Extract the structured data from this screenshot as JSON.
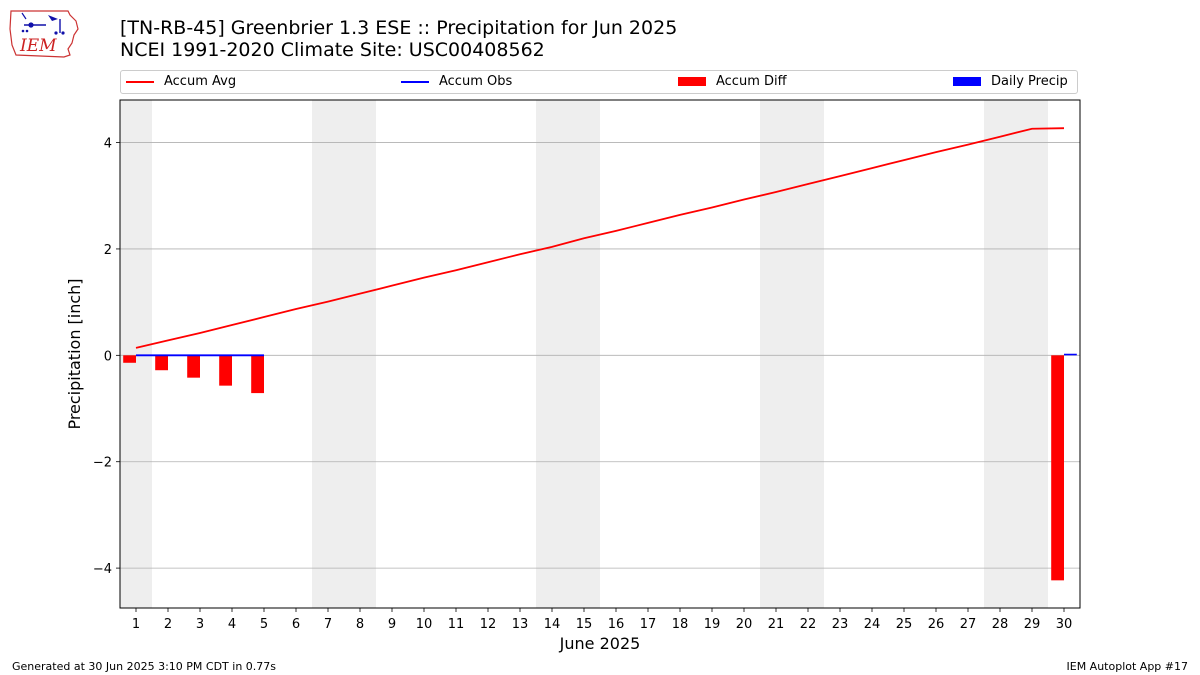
{
  "header": {
    "logo_text": "IEM",
    "title_line1": "[TN-RB-45] Greenbrier 1.3 ESE :: Precipitation for Jun 2025",
    "title_line2": "NCEI 1991-2020 Climate Site: USC00408562"
  },
  "footer": {
    "left": "Generated at 30 Jun 2025 3:10 PM CDT in 0.77s",
    "right": "IEM Autoplot App #17"
  },
  "colors": {
    "accum_avg": "#ff0000",
    "accum_obs": "#0000ff",
    "accum_diff": "#ff0000",
    "daily_precip": "#0000ff",
    "weekend_shade": "#eeeeee",
    "grid": "#b0b0b0"
  },
  "chart_data": {
    "type": "line",
    "title": "[TN-RB-45] Greenbrier 1.3 ESE :: Precipitation for Jun 2025",
    "subtitle": "NCEI 1991-2020 Climate Site: USC00408562",
    "xlabel": "June 2025",
    "ylabel": "Precipitation [inch]",
    "xlim": [
      0.5,
      30.5
    ],
    "ylim": [
      -4.75,
      4.8
    ],
    "x": [
      1,
      2,
      3,
      4,
      5,
      6,
      7,
      8,
      9,
      10,
      11,
      12,
      13,
      14,
      15,
      16,
      17,
      18,
      19,
      20,
      21,
      22,
      23,
      24,
      25,
      26,
      27,
      28,
      29,
      30
    ],
    "x_tick_labels": [
      "1",
      "2",
      "3",
      "4",
      "5",
      "6",
      "7",
      "8",
      "9",
      "10",
      "11",
      "12",
      "13",
      "14",
      "15",
      "16",
      "17",
      "18",
      "19",
      "20",
      "21",
      "22",
      "23",
      "24",
      "25",
      "26",
      "27",
      "28",
      "29",
      "30"
    ],
    "y_ticks": [
      4,
      2,
      0,
      -2,
      -4
    ],
    "y_tick_labels": [
      "4",
      "2",
      "0",
      "−2",
      "−4"
    ],
    "grid": "horizontal",
    "legend_position": "top",
    "weekend_shading": [
      [
        0.5,
        1.5
      ],
      [
        6.5,
        8.5
      ],
      [
        13.5,
        15.5
      ],
      [
        20.5,
        22.5
      ],
      [
        27.5,
        29.5
      ]
    ],
    "series": [
      {
        "name": "Accum Avg",
        "type": "line",
        "x": [
          1,
          2,
          3,
          4,
          5,
          6,
          7,
          8,
          9,
          10,
          11,
          12,
          13,
          14,
          15,
          16,
          17,
          18,
          19,
          20,
          21,
          22,
          23,
          24,
          25,
          26,
          27,
          28,
          29,
          30
        ],
        "values": [
          0.14,
          0.28,
          0.42,
          0.57,
          0.72,
          0.87,
          1.01,
          1.16,
          1.31,
          1.46,
          1.6,
          1.75,
          1.9,
          2.04,
          2.2,
          2.34,
          2.49,
          2.64,
          2.78,
          2.93,
          3.07,
          3.22,
          3.37,
          3.52,
          3.67,
          3.82,
          3.96,
          4.11,
          4.26,
          4.27
        ]
      },
      {
        "name": "Accum Obs",
        "type": "line",
        "x": [
          1,
          2,
          3,
          4,
          5
        ],
        "values": [
          0.0,
          0.0,
          0.0,
          0.0,
          0.0
        ]
      },
      {
        "name": "Accum Diff",
        "type": "bar",
        "x": [
          1,
          2,
          3,
          4,
          5,
          30
        ],
        "values": [
          -0.14,
          -0.28,
          -0.42,
          -0.57,
          -0.71,
          -4.23
        ]
      },
      {
        "name": "Daily Precip",
        "type": "bar",
        "x": [
          30
        ],
        "values": [
          0.03
        ]
      }
    ]
  }
}
